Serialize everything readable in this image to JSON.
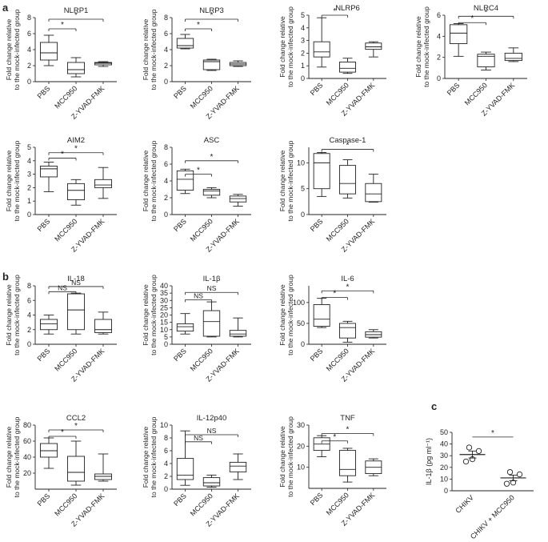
{
  "panel_labels": [
    "a",
    "b",
    "c"
  ],
  "common": {
    "ylabel_line1": "Fold change relative",
    "ylabel_line2": "to the mock-infected group",
    "categories": [
      "PBS",
      "MCC950",
      "Z-YVAD-FMK"
    ]
  },
  "chart_data": [
    {
      "type": "box",
      "panel": "a",
      "title": "NLRP1",
      "ylim": [
        0,
        8
      ],
      "yticks": [
        0,
        2,
        4,
        6,
        8
      ],
      "boxes": [
        {
          "min": 2.0,
          "q1": 2.7,
          "median": 3.6,
          "q3": 4.9,
          "max": 5.8
        },
        {
          "min": 0.6,
          "q1": 1.0,
          "median": 1.5,
          "q3": 2.4,
          "max": 3.0
        },
        {
          "min": 1.9,
          "q1": 2.1,
          "median": 2.3,
          "q3": 2.4,
          "max": 2.5
        }
      ],
      "sig": [
        {
          "from": 0,
          "to": 1,
          "label": "*",
          "y": 6.6
        },
        {
          "from": 0,
          "to": 2,
          "label": "*",
          "y": 7.8
        }
      ]
    },
    {
      "type": "box",
      "panel": "a",
      "title": "NLRP3",
      "ylim": [
        0,
        8
      ],
      "yticks": [
        0,
        2,
        4,
        6,
        8
      ],
      "boxes": [
        {
          "min": 4.1,
          "q1": 4.2,
          "median": 4.5,
          "q3": 5.4,
          "max": 5.9
        },
        {
          "min": 1.4,
          "q1": 1.5,
          "median": 2.5,
          "q3": 2.7,
          "max": 2.8
        },
        {
          "min": 1.9,
          "q1": 2.0,
          "median": 2.2,
          "q3": 2.4,
          "max": 2.6
        }
      ],
      "sig": [
        {
          "from": 0,
          "to": 1,
          "label": "*",
          "y": 6.6
        },
        {
          "from": 0,
          "to": 2,
          "label": "*",
          "y": 7.8
        }
      ]
    },
    {
      "type": "box",
      "panel": "a",
      "title": "NLRP6",
      "ylim": [
        0,
        5
      ],
      "yticks": [
        0,
        1,
        2,
        3,
        4,
        5
      ],
      "boxes": [
        {
          "min": 0.9,
          "q1": 1.7,
          "median": 2.1,
          "q3": 2.9,
          "max": 4.8
        },
        {
          "min": 0.4,
          "q1": 0.5,
          "median": 0.8,
          "q3": 1.3,
          "max": 1.6
        },
        {
          "min": 1.7,
          "q1": 2.3,
          "median": 2.5,
          "q3": 2.8,
          "max": 2.9
        }
      ],
      "sig": [
        {
          "from": 0,
          "to": 1,
          "label": "*",
          "y": 5.0
        }
      ]
    },
    {
      "type": "box",
      "panel": "a",
      "title": "NLRC4",
      "ylim": [
        0,
        6
      ],
      "yticks": [
        0,
        2,
        4,
        6
      ],
      "boxes": [
        {
          "min": 2.1,
          "q1": 3.3,
          "median": 4.3,
          "q3": 5.1,
          "max": 5.2
        },
        {
          "min": 0.8,
          "q1": 1.1,
          "median": 2.1,
          "q3": 2.3,
          "max": 2.5
        },
        {
          "min": 1.6,
          "q1": 1.7,
          "median": 1.9,
          "q3": 2.4,
          "max": 2.9
        }
      ],
      "sig": [
        {
          "from": 0,
          "to": 1,
          "label": "*",
          "y": 5.3
        },
        {
          "from": 0,
          "to": 2,
          "label": "*",
          "y": 5.9
        }
      ]
    },
    {
      "type": "box",
      "panel": "a",
      "title": "AIM2",
      "ylim": [
        0,
        5
      ],
      "yticks": [
        0,
        1,
        2,
        3,
        4,
        5
      ],
      "boxes": [
        {
          "min": 1.7,
          "q1": 2.8,
          "median": 3.4,
          "q3": 3.6,
          "max": 3.9
        },
        {
          "min": 0.7,
          "q1": 1.1,
          "median": 1.8,
          "q3": 2.3,
          "max": 2.6
        },
        {
          "min": 1.2,
          "q1": 2.0,
          "median": 2.2,
          "q3": 2.6,
          "max": 3.5
        }
      ],
      "sig": [
        {
          "from": 0,
          "to": 1,
          "label": "*",
          "y": 4.2
        },
        {
          "from": 0,
          "to": 2,
          "label": "*",
          "y": 4.6
        }
      ]
    },
    {
      "type": "box",
      "panel": "a",
      "title": "ASC",
      "ylim": [
        0,
        8
      ],
      "yticks": [
        0,
        2,
        4,
        6,
        8
      ],
      "boxes": [
        {
          "min": 2.5,
          "q1": 2.9,
          "median": 4.2,
          "q3": 5.2,
          "max": 5.4
        },
        {
          "min": 2.0,
          "q1": 2.3,
          "median": 2.8,
          "q3": 3.0,
          "max": 3.2
        },
        {
          "min": 1.0,
          "q1": 1.5,
          "median": 1.9,
          "q3": 2.2,
          "max": 2.4
        }
      ],
      "sig": [
        {
          "from": 0,
          "to": 1,
          "label": "*",
          "y": 4.8
        },
        {
          "from": 0,
          "to": 2,
          "label": "*",
          "y": 6.4
        }
      ]
    },
    {
      "type": "box",
      "panel": "a",
      "title": "Caspase-1",
      "ylim": [
        0,
        13
      ],
      "yticks": [
        0,
        5,
        10
      ],
      "boxes": [
        {
          "min": 3.5,
          "q1": 5.0,
          "median": 10.0,
          "q3": 11.8,
          "max": 12.0
        },
        {
          "min": 3.2,
          "q1": 4.0,
          "median": 6.0,
          "q3": 9.5,
          "max": 10.6
        },
        {
          "min": 2.4,
          "q1": 2.5,
          "median": 4.0,
          "q3": 6.0,
          "max": 7.8
        }
      ],
      "sig": [
        {
          "from": 0,
          "to": 2,
          "label": "*",
          "y": 12.6
        }
      ]
    },
    {
      "type": "box",
      "panel": "b",
      "title": "IL-18",
      "ylim": [
        0,
        8
      ],
      "yticks": [
        0,
        2,
        4,
        6,
        8
      ],
      "boxes": [
        {
          "min": 1.4,
          "q1": 2.0,
          "median": 2.8,
          "q3": 3.4,
          "max": 4.0
        },
        {
          "min": 1.4,
          "q1": 2.0,
          "median": 4.7,
          "q3": 6.9,
          "max": 7.0
        },
        {
          "min": 1.4,
          "q1": 1.6,
          "median": 2.0,
          "q3": 3.4,
          "max": 4.4
        }
      ],
      "sig": [
        {
          "from": 0,
          "to": 1,
          "label": "NS",
          "y": 7.2
        },
        {
          "from": 0,
          "to": 2,
          "label": "NS",
          "y": 7.9
        }
      ]
    },
    {
      "type": "box",
      "panel": "b",
      "title": "IL-1β",
      "ylim": [
        0,
        40
      ],
      "yticks": [
        0,
        5,
        10,
        15,
        20,
        25,
        30,
        35,
        40
      ],
      "boxes": [
        {
          "min": 7.0,
          "q1": 9.0,
          "median": 12.0,
          "q3": 14.0,
          "max": 21.0
        },
        {
          "min": 5.0,
          "q1": 5.5,
          "median": 15.5,
          "q3": 23.0,
          "max": 29.0
        },
        {
          "min": 5.0,
          "q1": 5.5,
          "median": 7.0,
          "q3": 9.5,
          "max": 18.0
        }
      ],
      "sig": [
        {
          "from": 0,
          "to": 1,
          "label": "NS",
          "y": 30.5
        },
        {
          "from": 0,
          "to": 2,
          "label": "NS",
          "y": 35.5
        }
      ]
    },
    {
      "type": "box",
      "panel": "b",
      "title": "IL-6",
      "ylim": [
        0,
        140
      ],
      "yticks": [
        0,
        50,
        100
      ],
      "boxes": [
        {
          "min": 40,
          "q1": 43,
          "median": 60,
          "q3": 95,
          "max": 110
        },
        {
          "min": 5,
          "q1": 15,
          "median": 40,
          "q3": 50,
          "max": 55
        },
        {
          "min": 15,
          "q1": 17,
          "median": 23,
          "q3": 30,
          "max": 35
        }
      ],
      "sig": [
        {
          "from": 0,
          "to": 1,
          "label": "*",
          "y": 112
        },
        {
          "from": 0,
          "to": 2,
          "label": "*",
          "y": 128
        }
      ]
    },
    {
      "type": "box",
      "panel": "b",
      "title": "CCL2",
      "ylim": [
        0,
        80
      ],
      "yticks": [
        20,
        40,
        60,
        80
      ],
      "boxes": [
        {
          "min": 26,
          "q1": 40,
          "median": 48,
          "q3": 57,
          "max": 64
        },
        {
          "min": 5,
          "q1": 10,
          "median": 21,
          "q3": 41,
          "max": 60
        },
        {
          "min": 10,
          "q1": 12,
          "median": 16,
          "q3": 19,
          "max": 44
        }
      ],
      "sig": [
        {
          "from": 0,
          "to": 1,
          "label": "*",
          "y": 66
        },
        {
          "from": 0,
          "to": 2,
          "label": "*",
          "y": 74
        }
      ]
    },
    {
      "type": "box",
      "panel": "b",
      "title": "IL-12p40",
      "ylim": [
        0,
        10
      ],
      "yticks": [
        0,
        2,
        4,
        6,
        8,
        10
      ],
      "boxes": [
        {
          "min": 0.6,
          "q1": 1.5,
          "median": 2.2,
          "q3": 4.8,
          "max": 9.1
        },
        {
          "min": 0.3,
          "q1": 0.5,
          "median": 1.0,
          "q3": 1.8,
          "max": 2.2
        },
        {
          "min": 1.5,
          "q1": 2.7,
          "median": 3.6,
          "q3": 4.2,
          "max": 5.5
        }
      ],
      "sig": [
        {
          "from": 0,
          "to": 1,
          "label": "NS",
          "y": 7.4
        },
        {
          "from": 0,
          "to": 2,
          "label": "NS",
          "y": 8.5
        }
      ]
    },
    {
      "type": "box",
      "panel": "b",
      "title": "TNF",
      "ylim": [
        0,
        30
      ],
      "yticks": [
        10,
        20,
        30
      ],
      "boxes": [
        {
          "min": 15,
          "q1": 18,
          "median": 21,
          "q3": 24,
          "max": 25
        },
        {
          "min": 3,
          "q1": 6,
          "median": 9,
          "q3": 18,
          "max": 19
        },
        {
          "min": 6,
          "q1": 7,
          "median": 10,
          "q3": 13,
          "max": 14
        }
      ],
      "sig": [
        {
          "from": 0,
          "to": 1,
          "label": "*",
          "y": 22.5
        },
        {
          "from": 0,
          "to": 2,
          "label": "*",
          "y": 26
        }
      ]
    },
    {
      "type": "scatter",
      "panel": "c",
      "ylabel": "IL-1β (pg ml⁻¹)",
      "ylim": [
        0,
        50
      ],
      "yticks": [
        0,
        10,
        20,
        30,
        40,
        50
      ],
      "categories": [
        "CHIKV",
        "CHIKV + MCC950"
      ],
      "groups": [
        {
          "points": [
            25,
            27,
            34,
            37
          ],
          "mean": 31,
          "sem": 3
        },
        {
          "points": [
            6,
            7,
            14,
            16
          ],
          "mean": 11,
          "sem": 2.4
        }
      ],
      "sig": [
        {
          "from": 0,
          "to": 1,
          "label": "*",
          "y": 46
        }
      ]
    }
  ]
}
